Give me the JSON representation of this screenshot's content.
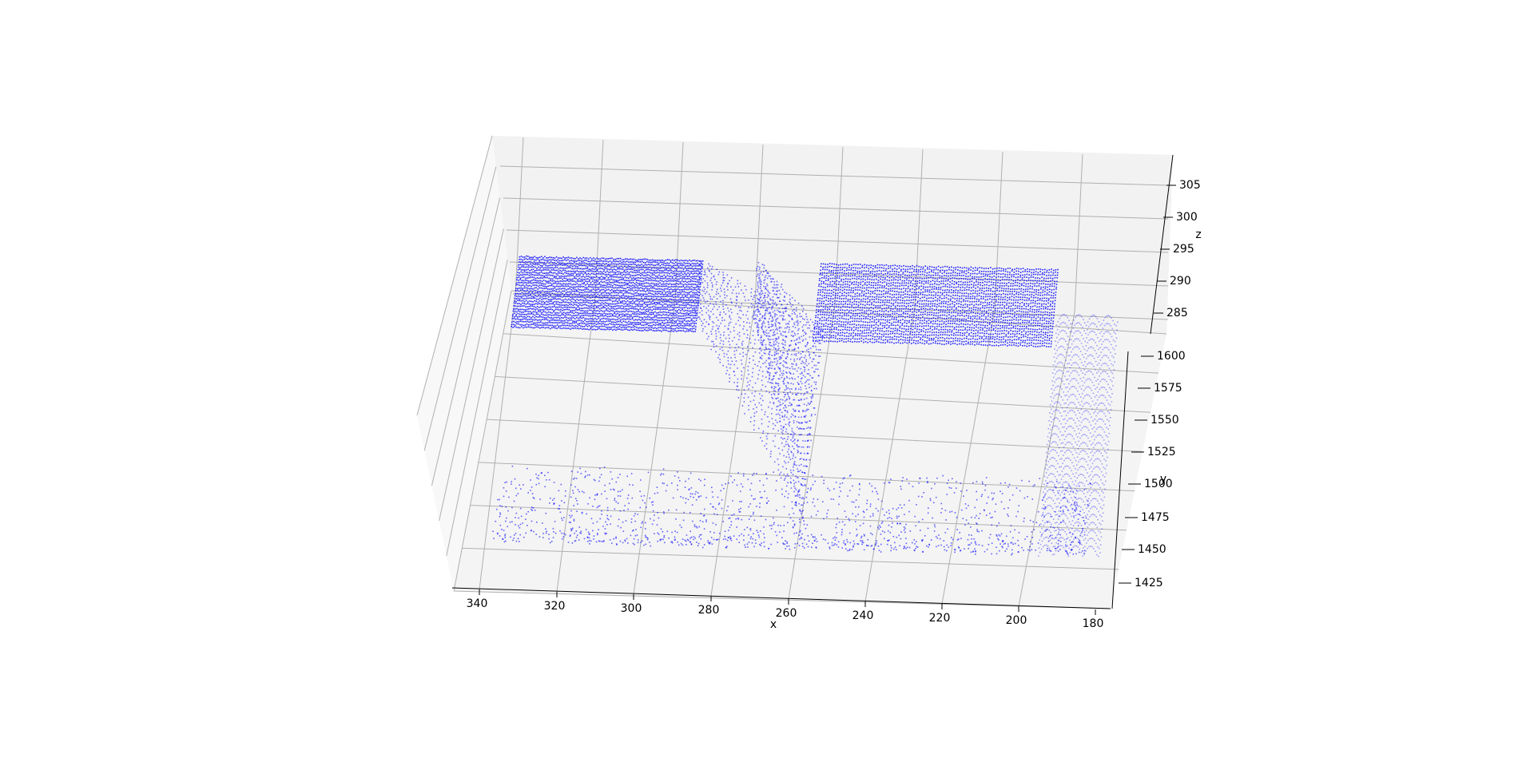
{
  "chart_data": {
    "type": "scatter",
    "projection": "3d",
    "title": "",
    "xlabel": "x",
    "ylabel": "y",
    "zlabel": "z",
    "xlim": [
      176,
      346
    ],
    "ylim": [
      1400,
      1620
    ],
    "zlim": [
      281,
      307
    ],
    "x_ticks": [
      "340",
      "320",
      "300",
      "280",
      "260",
      "240",
      "220",
      "200",
      "180"
    ],
    "y_ticks": [
      "1425",
      "1450",
      "1475",
      "1500",
      "1525",
      "1550",
      "1575",
      "1600"
    ],
    "z_ticks": [
      "285",
      "290",
      "295",
      "300",
      "305"
    ],
    "grid": true,
    "marker_color": "#0000ff",
    "series": [
      {
        "description_only": false,
        "surfaces": [
          {
            "part": "left-plateau",
            "x_range": [
              289,
              337
            ],
            "y_range": [
              1555,
              1612
            ],
            "z": 302
          },
          {
            "part": "right-plateau",
            "x_range": [
              196,
              258
            ],
            "y_range": [
              1550,
              1612
            ],
            "z": 302
          },
          {
            "part": "left-slope",
            "x_range": [
              258,
              289
            ],
            "y_range": [
              1460,
              1612
            ],
            "z_range": [
              284,
              302
            ]
          },
          {
            "part": "right-slope",
            "x_range": [
              258,
              274
            ],
            "y_range": [
              1460,
              1612
            ],
            "z_range": [
              284,
              302
            ]
          },
          {
            "part": "floor-scatter",
            "x_range": [
              184,
              338
            ],
            "y_range": [
              1440,
              1500
            ],
            "z": 282
          },
          {
            "part": "right-wall",
            "x_range": [
              180,
              196
            ],
            "y_range": [
              1440,
              1600
            ],
            "z_range": [
              282,
              300
            ]
          }
        ]
      }
    ]
  }
}
